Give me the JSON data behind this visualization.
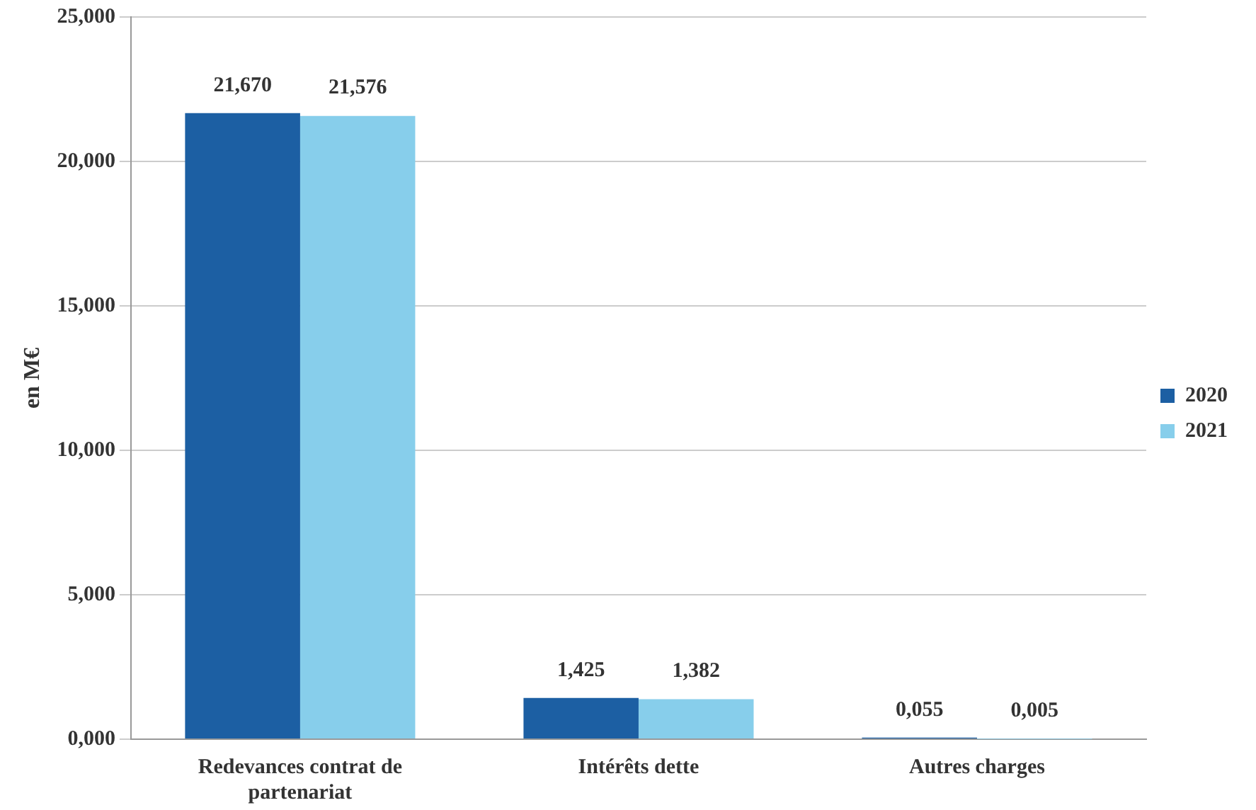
{
  "chart_data": {
    "type": "bar",
    "ylabel": "en M€",
    "categories": [
      "Redevances contrat de partenariat",
      "Intérêts dette",
      "Autres charges"
    ],
    "series": [
      {
        "name": "2020",
        "color": "#1c5fa3",
        "values": [
          21.67,
          1.425,
          0.055
        ],
        "value_labels": [
          "21,670",
          "1,425",
          "0,055"
        ]
      },
      {
        "name": "2021",
        "color": "#87ceeb",
        "values": [
          21.576,
          1.382,
          0.005
        ],
        "value_labels": [
          "21,576",
          "1,382",
          "0,005"
        ]
      }
    ],
    "ylim": [
      0,
      25
    ],
    "yticks": [
      {
        "value": 0,
        "label": "0,000"
      },
      {
        "value": 5,
        "label": "5,000"
      },
      {
        "value": 10,
        "label": "10,000"
      },
      {
        "value": 15,
        "label": "15,000"
      },
      {
        "value": 20,
        "label": "20,000"
      },
      {
        "value": 25,
        "label": "25,000"
      }
    ],
    "grid": "y",
    "legend": "right"
  }
}
